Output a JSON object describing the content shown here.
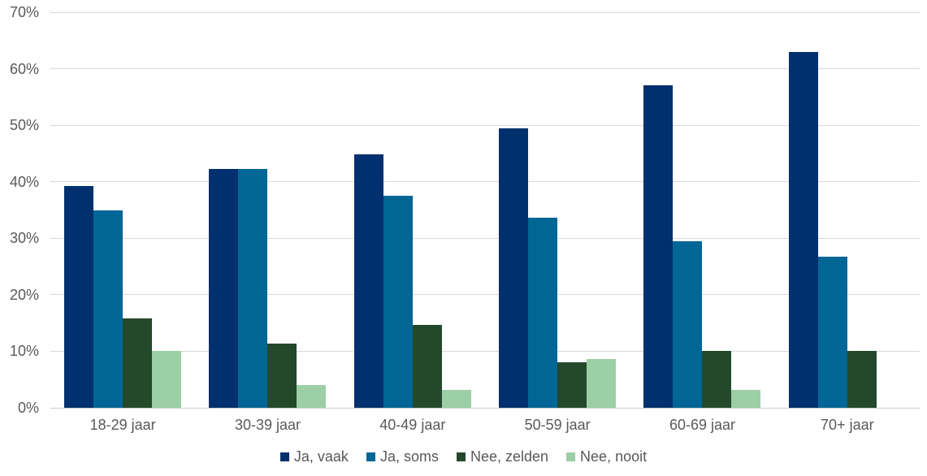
{
  "chart_data": {
    "type": "bar",
    "title": "",
    "xlabel": "",
    "ylabel": "",
    "categories": [
      "18-29 jaar",
      "30-39 jaar",
      "40-49 jaar",
      "50-59 jaar",
      "60-69 jaar",
      "70+ jaar"
    ],
    "series": [
      {
        "name": "Ja, vaak",
        "color": "#00306e",
        "values": [
          39.2,
          42.2,
          44.8,
          49.5,
          57.0,
          63.0
        ]
      },
      {
        "name": "Ja, soms",
        "color": "#006695",
        "values": [
          34.9,
          42.2,
          37.5,
          33.6,
          29.5,
          26.8
        ]
      },
      {
        "name": "Nee, zelden",
        "color": "#24482b",
        "values": [
          15.8,
          11.3,
          14.6,
          8.0,
          10.1,
          10.1
        ]
      },
      {
        "name": "Nee, nooit",
        "color": "#9ccfa5",
        "values": [
          10.0,
          4.1,
          3.1,
          8.7,
          3.1,
          0.0
        ]
      }
    ],
    "ylim": [
      0,
      70
    ],
    "ytick_step": 10,
    "ytick_labels": [
      "0%",
      "10%",
      "20%",
      "30%",
      "40%",
      "50%",
      "60%",
      "70%"
    ],
    "grid": "horizontal",
    "legend_position": "bottom"
  },
  "style_colors": {
    "axis_text": "#595959",
    "gridline": "#d9d9d9",
    "axis_line": "#cdcdcd",
    "background": "#ffffff"
  }
}
